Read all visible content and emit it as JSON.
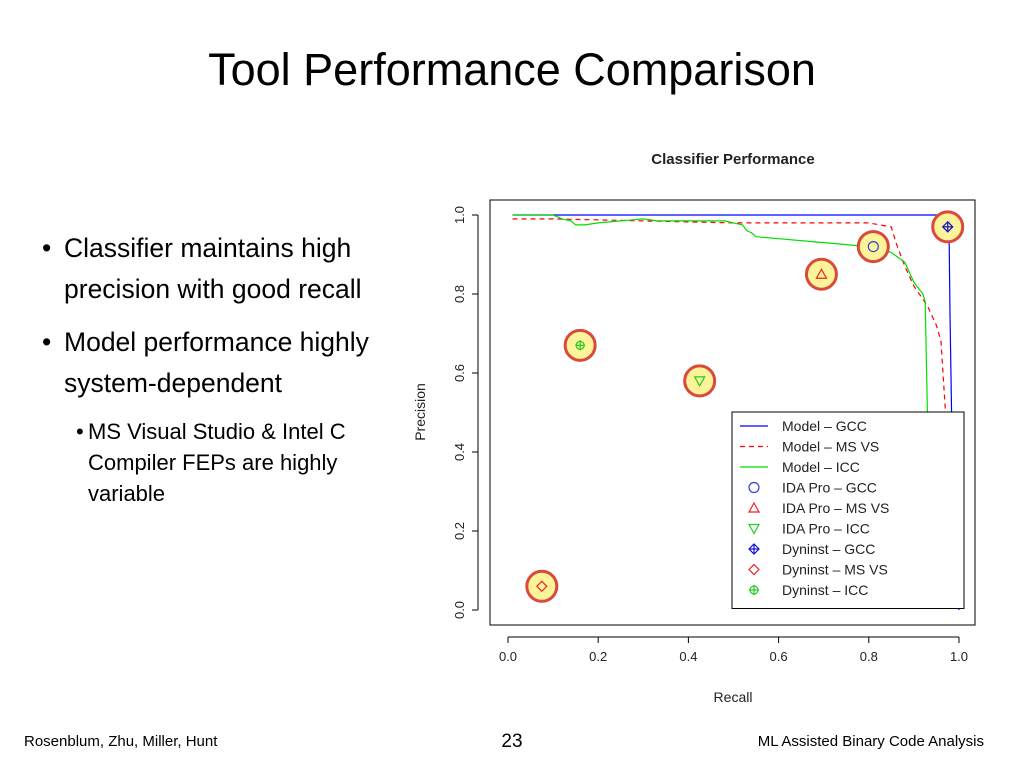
{
  "slide": {
    "title": "Tool Performance Comparison",
    "bullets": [
      "Classifier maintains high precision with good recall",
      "Model performance highly system-dependent"
    ],
    "sub_bullets": [
      "MS Visual Studio & Intel C Compiler FEPs are highly variable"
    ],
    "footer_left": "Rosenblum, Zhu, Miller, Hunt",
    "page_number": "23",
    "footer_right": "ML Assisted Binary Code Analysis"
  },
  "chart_data": {
    "type": "line",
    "title": "Classifier Performance",
    "xlabel": "Recall",
    "ylabel": "Precision",
    "xlim": [
      0,
      1.0
    ],
    "ylim": [
      0,
      1.0
    ],
    "xticks": [
      "0.0",
      "0.2",
      "0.4",
      "0.6",
      "0.8",
      "1.0"
    ],
    "yticks": [
      "0.0",
      "0.2",
      "0.4",
      "0.6",
      "0.8",
      "1.0"
    ],
    "legend_position": "bottom-right",
    "grid": false,
    "highlight_color": "#d94a3a",
    "highlight_fill": "#fdf39a",
    "lines": [
      {
        "name": "Model – GCC",
        "color": "#0000ff",
        "dash": "solid",
        "points": [
          [
            0.01,
            1.0
          ],
          [
            0.2,
            1.0
          ],
          [
            0.5,
            1.0
          ],
          [
            0.8,
            1.0
          ],
          [
            0.97,
            1.0
          ],
          [
            0.975,
            0.99
          ],
          [
            0.978,
            0.95
          ],
          [
            0.98,
            0.75
          ],
          [
            0.985,
            0.4
          ],
          [
            0.99,
            0.15
          ],
          [
            0.995,
            0.05
          ],
          [
            1.0,
            0.0
          ]
        ]
      },
      {
        "name": "Model – MS VS",
        "color": "#ff0000",
        "dash": "dashed",
        "points": [
          [
            0.01,
            0.99
          ],
          [
            0.1,
            0.99
          ],
          [
            0.3,
            0.985
          ],
          [
            0.5,
            0.98
          ],
          [
            0.6,
            0.98
          ],
          [
            0.7,
            0.98
          ],
          [
            0.8,
            0.98
          ],
          [
            0.85,
            0.97
          ],
          [
            0.86,
            0.93
          ],
          [
            0.88,
            0.87
          ],
          [
            0.9,
            0.82
          ],
          [
            0.93,
            0.77
          ],
          [
            0.95,
            0.72
          ],
          [
            0.96,
            0.68
          ],
          [
            0.97,
            0.5
          ],
          [
            0.98,
            0.3
          ],
          [
            0.99,
            0.12
          ],
          [
            1.0,
            0.0
          ]
        ]
      },
      {
        "name": "Model – ICC",
        "color": "#00dd00",
        "dash": "solid",
        "points": [
          [
            0.01,
            1.0
          ],
          [
            0.1,
            1.0
          ],
          [
            0.12,
            0.99
          ],
          [
            0.14,
            0.985
          ],
          [
            0.15,
            0.975
          ],
          [
            0.17,
            0.975
          ],
          [
            0.2,
            0.98
          ],
          [
            0.3,
            0.99
          ],
          [
            0.33,
            0.985
          ],
          [
            0.35,
            0.985
          ],
          [
            0.48,
            0.985
          ],
          [
            0.5,
            0.98
          ],
          [
            0.52,
            0.975
          ],
          [
            0.53,
            0.96
          ],
          [
            0.54,
            0.955
          ],
          [
            0.55,
            0.945
          ],
          [
            0.6,
            0.94
          ],
          [
            0.7,
            0.93
          ],
          [
            0.8,
            0.92
          ],
          [
            0.85,
            0.905
          ],
          [
            0.88,
            0.88
          ],
          [
            0.9,
            0.83
          ],
          [
            0.92,
            0.8
          ],
          [
            0.925,
            0.78
          ],
          [
            0.93,
            0.5
          ],
          [
            0.935,
            0.3
          ],
          [
            0.94,
            0.12
          ],
          [
            0.945,
            0.02
          ],
          [
            0.96,
            0.01
          ],
          [
            0.98,
            0.01
          ],
          [
            1.0,
            0.01
          ]
        ]
      }
    ],
    "points": [
      {
        "name": "IDA Pro – GCC",
        "marker": "circle",
        "color": "#3344cc",
        "x": 0.81,
        "y": 0.92
      },
      {
        "name": "IDA Pro – MS VS",
        "marker": "triangle-up",
        "color": "#ee2222",
        "x": 0.695,
        "y": 0.85
      },
      {
        "name": "IDA Pro – ICC",
        "marker": "triangle-down",
        "color": "#22cc22",
        "x": 0.425,
        "y": 0.58
      },
      {
        "name": "Dyninst – GCC",
        "marker": "diamond-plus",
        "color": "#1111cc",
        "x": 0.975,
        "y": 0.97
      },
      {
        "name": "Dyninst – MS VS",
        "marker": "diamond",
        "color": "#ee2222",
        "x": 0.075,
        "y": 0.06
      },
      {
        "name": "Dyninst – ICC",
        "marker": "circle-plus",
        "color": "#22cc22",
        "x": 0.16,
        "y": 0.67
      }
    ]
  }
}
